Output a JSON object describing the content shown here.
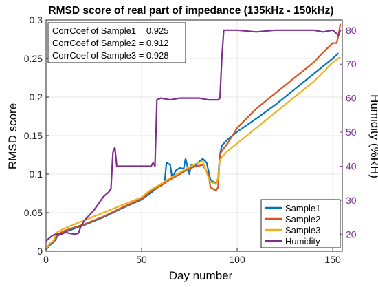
{
  "chart_data": {
    "type": "line",
    "title": "RMSD score of real part of impedance (135kHz - 150kHz)",
    "xlabel": "Day number",
    "ylabel": "RMSD score",
    "y2label": "Humidity (%RH)",
    "xlim": [
      0,
      155
    ],
    "ylim": [
      0,
      0.3
    ],
    "y2lim": [
      15,
      83
    ],
    "xticks": [
      0,
      50,
      100,
      150
    ],
    "yticks": [
      0,
      0.05,
      0.1,
      0.15,
      0.2,
      0.25,
      0.3
    ],
    "yticklabels": [
      "0",
      "0.05",
      "0.1",
      "0.15",
      "0.2",
      "0.25",
      "0.3"
    ],
    "y2ticks": [
      20,
      30,
      40,
      50,
      60,
      70,
      80
    ],
    "grid": true,
    "legend_position": "bottom-right",
    "annotations": [
      "CorrCoef of Sample1 = 0.925",
      "CorrCoef of Sample2 = 0.912",
      "CorrCoef of Sample3 = 0.928"
    ],
    "series": [
      {
        "name": "Sample1",
        "axis": "left",
        "color": "#0072BD",
        "x": [
          0,
          2,
          4,
          5,
          6,
          10,
          20,
          30,
          40,
          50,
          55,
          58,
          62,
          63,
          65,
          66,
          68,
          70,
          72,
          73,
          75,
          76,
          78,
          80,
          82,
          84,
          86,
          88,
          89,
          90,
          91,
          92,
          95,
          100,
          110,
          120,
          130,
          140,
          150,
          153
        ],
        "y": [
          0.002,
          0.008,
          0.012,
          0.015,
          0.02,
          0.025,
          0.034,
          0.044,
          0.056,
          0.067,
          0.076,
          0.082,
          0.088,
          0.115,
          0.112,
          0.095,
          0.105,
          0.108,
          0.107,
          0.12,
          0.1,
          0.112,
          0.11,
          0.116,
          0.12,
          0.115,
          0.093,
          0.089,
          0.088,
          0.095,
          0.125,
          0.137,
          0.145,
          0.155,
          0.172,
          0.19,
          0.21,
          0.23,
          0.25,
          0.257
        ]
      },
      {
        "name": "Sample2",
        "axis": "left",
        "color": "#D95319",
        "x": [
          0,
          2,
          4,
          5,
          6,
          10,
          20,
          30,
          40,
          50,
          55,
          60,
          65,
          70,
          74,
          78,
          82,
          85,
          86,
          88,
          89,
          90,
          91,
          92,
          95,
          100,
          110,
          120,
          130,
          140,
          145,
          150,
          152,
          153,
          154
        ],
        "y": [
          0.002,
          0.01,
          0.013,
          0.017,
          0.022,
          0.027,
          0.035,
          0.045,
          0.057,
          0.068,
          0.078,
          0.085,
          0.093,
          0.1,
          0.106,
          0.11,
          0.112,
          0.1,
          0.083,
          0.08,
          0.079,
          0.083,
          0.125,
          0.13,
          0.14,
          0.16,
          0.185,
          0.205,
          0.225,
          0.245,
          0.258,
          0.27,
          0.27,
          0.28,
          0.295
        ]
      },
      {
        "name": "Sample3",
        "axis": "left",
        "color": "#EDB120",
        "x": [
          0,
          2,
          4,
          5,
          6,
          10,
          20,
          30,
          40,
          50,
          55,
          60,
          65,
          70,
          74,
          78,
          82,
          85,
          86,
          88,
          89,
          90,
          91,
          92,
          95,
          100,
          110,
          120,
          130,
          140,
          150,
          154
        ],
        "y": [
          0.003,
          0.01,
          0.014,
          0.022,
          0.025,
          0.03,
          0.04,
          0.05,
          0.06,
          0.07,
          0.08,
          0.087,
          0.095,
          0.102,
          0.108,
          0.113,
          0.117,
          0.095,
          0.09,
          0.088,
          0.087,
          0.095,
          0.118,
          0.122,
          0.13,
          0.14,
          0.16,
          0.18,
          0.2,
          0.22,
          0.245,
          0.252
        ]
      },
      {
        "name": "Humidity",
        "axis": "right",
        "color": "#7E2F8E",
        "x": [
          0,
          3,
          5,
          8,
          10,
          15,
          17,
          18,
          20,
          25,
          30,
          33,
          34,
          35,
          36,
          37,
          38,
          40,
          45,
          50,
          55,
          56,
          57,
          58,
          60,
          65,
          70,
          75,
          80,
          85,
          90,
          91,
          92,
          93,
          95,
          100,
          110,
          120,
          130,
          140,
          145,
          150,
          153,
          154
        ],
        "y": [
          18,
          19.5,
          20,
          20,
          20.5,
          20,
          20.3,
          22,
          24,
          27,
          31,
          32.5,
          33.5,
          44,
          45.5,
          40,
          40,
          40,
          40,
          40,
          40,
          41,
          40,
          59.5,
          60,
          59.5,
          60,
          60,
          60,
          59.5,
          59.5,
          60,
          72,
          80,
          80,
          80,
          79.5,
          80,
          80,
          80,
          79.5,
          80,
          78.5,
          80
        ]
      }
    ]
  }
}
